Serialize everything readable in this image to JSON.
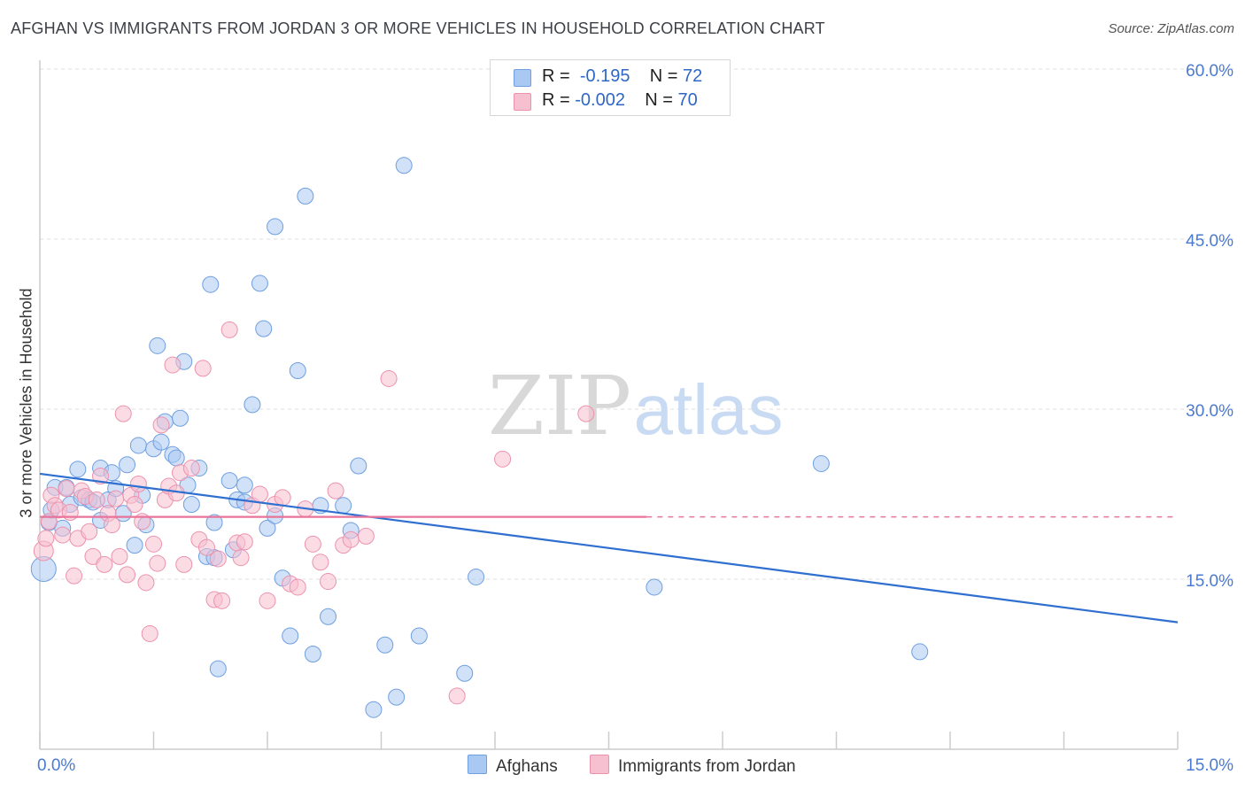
{
  "title": "AFGHAN VS IMMIGRANTS FROM JORDAN 3 OR MORE VEHICLES IN HOUSEHOLD CORRELATION CHART",
  "source": "Source: ZipAtlas.com",
  "watermark": {
    "zip": "ZIP",
    "atlas": "atlas"
  },
  "legend": {
    "r_label": "R =",
    "n_label": "N =",
    "rows": [
      {
        "r": "-0.195",
        "n": "72",
        "color": "#a9c8f2",
        "border": "#6f9fe0"
      },
      {
        "r": "-0.002",
        "n": "70",
        "color": "#f7c0d0",
        "border": "#ec92ad"
      }
    ]
  },
  "bottom_legend": {
    "series1": {
      "label": "Afghans",
      "color": "#a9c8f2",
      "border": "#6f9fe0"
    },
    "series2": {
      "label": "Immigrants from Jordan",
      "color": "#f7c0d0",
      "border": "#ec92ad"
    }
  },
  "chart_data": {
    "type": "scatter",
    "xlabel": "",
    "ylabel": "3 or more Vehicles in Household",
    "xlim": [
      0,
      15
    ],
    "ylim": [
      0,
      60
    ],
    "x_tick_labels": [
      {
        "value": 0,
        "label": "0.0%"
      },
      {
        "value": 15,
        "label": "15.0%"
      }
    ],
    "y_tick_labels": [
      {
        "value": 15,
        "label": "15.0%"
      },
      {
        "value": 30,
        "label": "30.0%"
      },
      {
        "value": 45,
        "label": "45.0%"
      },
      {
        "value": 60,
        "label": "60.0%"
      }
    ],
    "series": [
      {
        "name": "Afghans",
        "color": "#a9c8f2",
        "stroke": "#6f9fe0",
        "trend": {
          "x": [
            0,
            15
          ],
          "y": [
            24.3,
            11.2
          ],
          "color": "#2f6fd0"
        },
        "points": [
          [
            0.05,
            15.9
          ],
          [
            0.12,
            20.0
          ],
          [
            0.15,
            21.1
          ],
          [
            0.2,
            23.1
          ],
          [
            0.3,
            19.5
          ],
          [
            0.35,
            23.1
          ],
          [
            0.4,
            21.6
          ],
          [
            0.5,
            24.7
          ],
          [
            0.55,
            22.2
          ],
          [
            0.65,
            22.0
          ],
          [
            0.7,
            21.8
          ],
          [
            0.8,
            24.8
          ],
          [
            0.8,
            20.2
          ],
          [
            0.9,
            22.0
          ],
          [
            0.95,
            24.4
          ],
          [
            1.0,
            23.0
          ],
          [
            1.1,
            20.8
          ],
          [
            1.15,
            25.1
          ],
          [
            1.25,
            18.0
          ],
          [
            1.3,
            26.8
          ],
          [
            1.35,
            22.4
          ],
          [
            1.4,
            19.8
          ],
          [
            1.5,
            26.5
          ],
          [
            1.55,
            35.6
          ],
          [
            1.6,
            27.1
          ],
          [
            1.65,
            28.9
          ],
          [
            1.75,
            26.0
          ],
          [
            1.8,
            25.7
          ],
          [
            1.85,
            29.2
          ],
          [
            1.9,
            34.2
          ],
          [
            1.95,
            23.3
          ],
          [
            2.0,
            21.6
          ],
          [
            2.1,
            24.8
          ],
          [
            2.2,
            17.0
          ],
          [
            2.25,
            41.0
          ],
          [
            2.3,
            20.0
          ],
          [
            2.3,
            16.9
          ],
          [
            2.35,
            7.1
          ],
          [
            2.5,
            23.7
          ],
          [
            2.55,
            17.6
          ],
          [
            2.6,
            22.0
          ],
          [
            2.7,
            21.8
          ],
          [
            2.7,
            23.3
          ],
          [
            2.8,
            30.4
          ],
          [
            2.9,
            41.1
          ],
          [
            2.95,
            37.1
          ],
          [
            3.0,
            19.5
          ],
          [
            3.1,
            20.6
          ],
          [
            3.1,
            46.1
          ],
          [
            3.2,
            15.1
          ],
          [
            3.3,
            10.0
          ],
          [
            3.4,
            33.4
          ],
          [
            3.5,
            48.8
          ],
          [
            3.6,
            8.4
          ],
          [
            3.7,
            21.5
          ],
          [
            3.8,
            11.7
          ],
          [
            4.0,
            21.5
          ],
          [
            4.1,
            19.3
          ],
          [
            4.2,
            25.0
          ],
          [
            4.4,
            3.5
          ],
          [
            4.55,
            9.2
          ],
          [
            4.7,
            4.6
          ],
          [
            4.8,
            51.5
          ],
          [
            5.0,
            10.0
          ],
          [
            5.6,
            6.7
          ],
          [
            5.75,
            15.2
          ],
          [
            8.1,
            14.3
          ],
          [
            10.3,
            25.2
          ],
          [
            11.6,
            8.6
          ]
        ],
        "sizes": {
          "0": 28
        }
      },
      {
        "name": "Immigrants from Jordan",
        "color": "#f7c0d0",
        "stroke": "#ec92ad",
        "trend": {
          "x": [
            0,
            8.0
          ],
          "y": [
            20.5,
            20.5
          ],
          "dashed_to": 15,
          "color": "#e8749a"
        },
        "points": [
          [
            0.05,
            17.5
          ],
          [
            0.08,
            18.6
          ],
          [
            0.12,
            20.1
          ],
          [
            0.15,
            22.4
          ],
          [
            0.2,
            21.5
          ],
          [
            0.25,
            21.1
          ],
          [
            0.3,
            18.9
          ],
          [
            0.35,
            23.0
          ],
          [
            0.4,
            20.9
          ],
          [
            0.45,
            15.3
          ],
          [
            0.5,
            18.6
          ],
          [
            0.55,
            22.8
          ],
          [
            0.6,
            22.3
          ],
          [
            0.65,
            19.2
          ],
          [
            0.7,
            17.0
          ],
          [
            0.75,
            22.0
          ],
          [
            0.8,
            24.1
          ],
          [
            0.85,
            16.3
          ],
          [
            0.9,
            20.8
          ],
          [
            0.95,
            19.8
          ],
          [
            1.0,
            22.1
          ],
          [
            1.05,
            17.0
          ],
          [
            1.1,
            29.6
          ],
          [
            1.15,
            15.4
          ],
          [
            1.2,
            22.4
          ],
          [
            1.25,
            21.6
          ],
          [
            1.3,
            23.4
          ],
          [
            1.35,
            20.1
          ],
          [
            1.4,
            14.7
          ],
          [
            1.45,
            10.2
          ],
          [
            1.5,
            18.1
          ],
          [
            1.55,
            16.4
          ],
          [
            1.6,
            28.6
          ],
          [
            1.65,
            22.0
          ],
          [
            1.7,
            23.2
          ],
          [
            1.75,
            33.9
          ],
          [
            1.8,
            22.6
          ],
          [
            1.85,
            24.4
          ],
          [
            1.9,
            16.3
          ],
          [
            2.0,
            24.8
          ],
          [
            2.1,
            18.5
          ],
          [
            2.15,
            33.6
          ],
          [
            2.2,
            17.8
          ],
          [
            2.3,
            13.2
          ],
          [
            2.35,
            16.8
          ],
          [
            2.4,
            13.1
          ],
          [
            2.5,
            37.0
          ],
          [
            2.6,
            18.2
          ],
          [
            2.65,
            16.9
          ],
          [
            2.7,
            18.3
          ],
          [
            2.8,
            21.5
          ],
          [
            2.9,
            22.5
          ],
          [
            3.0,
            13.1
          ],
          [
            3.1,
            21.6
          ],
          [
            3.2,
            22.2
          ],
          [
            3.3,
            14.6
          ],
          [
            3.4,
            14.3
          ],
          [
            3.5,
            21.2
          ],
          [
            3.6,
            18.1
          ],
          [
            3.7,
            16.5
          ],
          [
            3.8,
            14.8
          ],
          [
            3.9,
            22.8
          ],
          [
            4.0,
            18.0
          ],
          [
            4.1,
            18.5
          ],
          [
            4.3,
            18.8
          ],
          [
            4.6,
            32.7
          ],
          [
            5.5,
            4.7
          ],
          [
            6.1,
            25.6
          ],
          [
            7.2,
            29.6
          ]
        ],
        "sizes": {
          "0": 22
        }
      }
    ]
  }
}
